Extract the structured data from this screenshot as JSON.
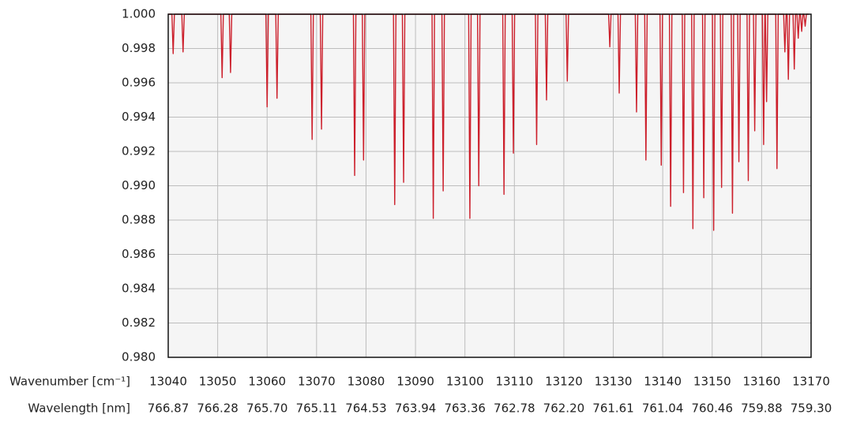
{
  "chart_data": {
    "type": "line",
    "xlabel": "Wavenumber [cm⁻¹]",
    "x2label": "Wavelength [nm]",
    "x2labels": [
      "766.87",
      "766.28",
      "765.70",
      "765.11",
      "764.53",
      "763.94",
      "763.36",
      "762.78",
      "762.20",
      "761.61",
      "761.04",
      "760.46",
      "759.88",
      "759.30"
    ],
    "xlim": [
      13040,
      13170
    ],
    "xticks": [
      13040,
      13050,
      13060,
      13070,
      13080,
      13090,
      13100,
      13110,
      13120,
      13130,
      13140,
      13150,
      13160,
      13170
    ],
    "ylim": [
      0.98,
      1.0
    ],
    "yticks": [
      {
        "value": 0.98,
        "label": "0.980"
      },
      {
        "value": 0.982,
        "label": "0.982"
      },
      {
        "value": 0.984,
        "label": "0.984"
      },
      {
        "value": 0.986,
        "label": "0.986"
      },
      {
        "value": 0.988,
        "label": "0.988"
      },
      {
        "value": 0.99,
        "label": "0.990"
      },
      {
        "value": 0.992,
        "label": "0.992"
      },
      {
        "value": 0.994,
        "label": "0.994"
      },
      {
        "value": 0.996,
        "label": "0.996"
      },
      {
        "value": 0.998,
        "label": "0.998"
      },
      {
        "value": 1.0,
        "label": "1.000"
      }
    ],
    "grid": true,
    "x": [
      13040,
      13040.75,
      13041,
      13041.25,
      13042.75,
      13043,
      13043.25,
      13050.65,
      13050.9,
      13051.15,
      13052.35,
      13052.6,
      13052.85,
      13059.75,
      13060,
      13060.25,
      13061.75,
      13062,
      13062.25,
      13068.85,
      13069.1,
      13069.35,
      13070.75,
      13071,
      13071.25,
      13077.45,
      13077.7,
      13077.95,
      13079.25,
      13079.5,
      13079.75,
      13085.55,
      13085.8,
      13086.05,
      13087.35,
      13087.6,
      13087.85,
      13093.35,
      13093.6,
      13093.85,
      13095.35,
      13095.6,
      13095.85,
      13100.75,
      13101,
      13101.25,
      13102.55,
      13102.8,
      13103.05,
      13107.65,
      13107.9,
      13108.15,
      13109.55,
      13109.8,
      13110.05,
      13114.25,
      13114.5,
      13114.75,
      13116.25,
      13116.5,
      13116.75,
      13120.45,
      13120.7,
      13120.95,
      13129.05,
      13129.3,
      13129.55,
      13130.95,
      13131.2,
      13131.45,
      13134.45,
      13134.7,
      13134.95,
      13136.35,
      13136.6,
      13136.85,
      13139.45,
      13139.7,
      13139.95,
      13141.35,
      13141.6,
      13141.85,
      13143.95,
      13144.2,
      13144.45,
      13145.85,
      13146.1,
      13146.35,
      13148.05,
      13148.3,
      13148.55,
      13150.05,
      13150.3,
      13150.55,
      13151.65,
      13151.9,
      13152.15,
      13153.85,
      13154.1,
      13154.35,
      13155.15,
      13155.4,
      13155.65,
      13157.05,
      13157.3,
      13157.55,
      13158.35,
      13158.6,
      13158.85,
      13160.15,
      13160.4,
      13160.65,
      13160.75,
      13161,
      13161.25,
      13162.85,
      13163.1,
      13163.35,
      13164.45,
      13164.7,
      13164.95,
      13165.15,
      13165.4,
      13165.65,
      13166.35,
      13166.6,
      13166.85,
      13167.15,
      13167.4,
      13167.65,
      13167.85,
      13168.1,
      13168.35,
      13168.55,
      13168.8,
      13169.05,
      13169.5
    ],
    "series": [
      {
        "color": "#cc1f2b",
        "values": [
          1,
          1,
          0.9977,
          1,
          1,
          0.9978,
          1,
          1,
          0.9963,
          1,
          1,
          0.9966,
          1,
          1,
          0.9946,
          1,
          1,
          0.9951,
          1,
          1,
          0.9927,
          1,
          1,
          0.9933,
          1,
          1,
          0.9906,
          1,
          1,
          0.9915,
          1,
          1,
          0.9889,
          1,
          1,
          0.9902,
          1,
          1,
          0.9881,
          1,
          1,
          0.9897,
          1,
          1,
          0.9881,
          1,
          1,
          0.99,
          1,
          1,
          0.9895,
          1,
          1,
          0.9919,
          1,
          1,
          0.9924,
          1,
          1,
          0.995,
          1,
          1,
          0.9961,
          1,
          1,
          0.9981,
          1,
          1,
          0.9954,
          1,
          1,
          0.9943,
          1,
          1,
          0.9915,
          1,
          1,
          0.9912,
          1,
          1,
          0.9888,
          1,
          1,
          0.9896,
          1,
          1,
          0.9875,
          1,
          1,
          0.9893,
          1,
          1,
          0.9874,
          1,
          1,
          0.9899,
          1,
          1,
          0.9884,
          1,
          1,
          0.9914,
          1,
          1,
          0.9903,
          1,
          1,
          0.9932,
          1,
          1,
          0.9924,
          1,
          1,
          0.9949,
          1,
          1,
          0.991,
          1,
          1,
          0.9978,
          1,
          1,
          0.9962,
          1,
          1,
          0.9968,
          1,
          1,
          0.9986,
          1,
          1,
          0.999,
          1,
          1,
          0.9993,
          1,
          1
        ]
      }
    ]
  }
}
